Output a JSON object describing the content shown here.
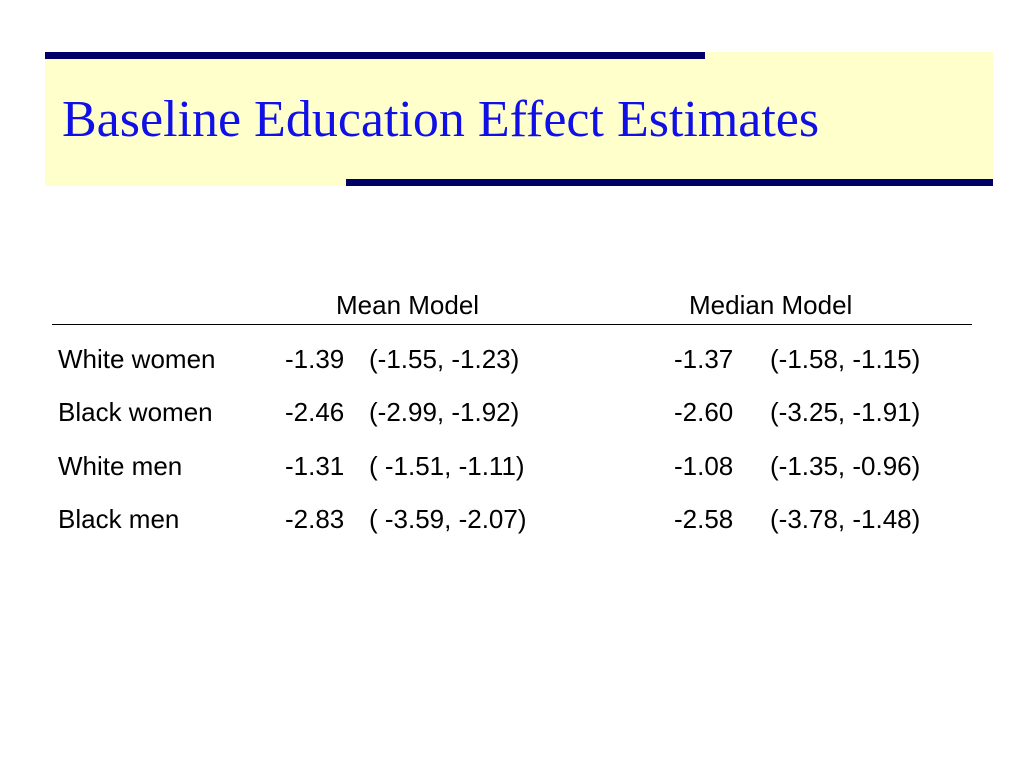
{
  "slide": {
    "title": "Baseline Education Effect Estimates",
    "colors": {
      "title": "#1010e6",
      "title_background": "#ffffcc",
      "accent_bars": "#000066"
    }
  },
  "table": {
    "headers": [
      "Mean Model",
      "Median Model"
    ],
    "rows": [
      {
        "label": "White women",
        "mean_est": "-1.39",
        "mean_ci": "(-1.55, -1.23)",
        "median_est": "-1.37",
        "median_ci": "(-1.58, -1.15)"
      },
      {
        "label": "Black women",
        "mean_est": "-2.46",
        "mean_ci": "(-2.99, -1.92)",
        "median_est": "-2.60",
        "median_ci": "(-3.25, -1.91)"
      },
      {
        "label": "White men",
        "mean_est": "-1.31",
        "mean_ci": "( -1.51, -1.11)",
        "median_est": "-1.08",
        "median_ci": "(-1.35, -0.96)"
      },
      {
        "label": "Black men",
        "mean_est": "-2.83",
        "mean_ci": "( -3.59, -2.07)",
        "median_est": "-2.58",
        "median_ci": "(-3.78, -1.48)"
      }
    ]
  }
}
